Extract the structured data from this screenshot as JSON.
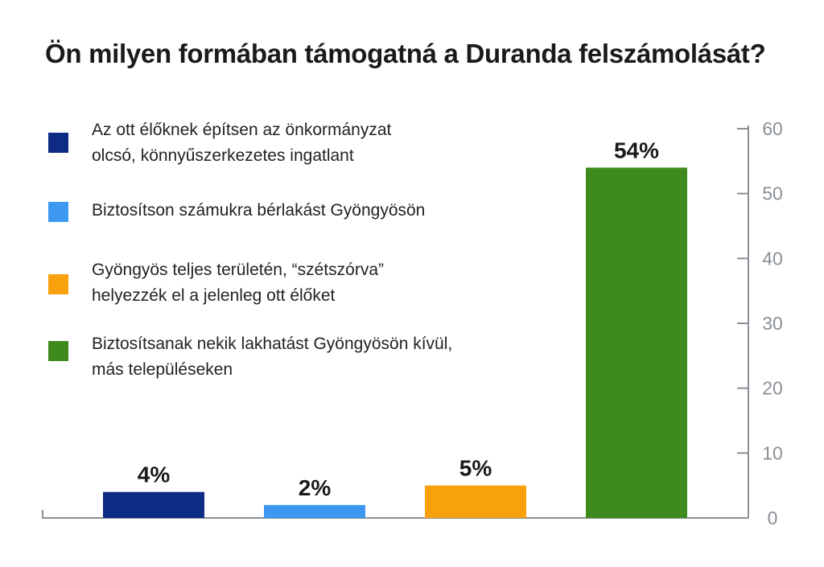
{
  "chart_data": {
    "type": "bar",
    "title": "Ön milyen formában támogatná a Duranda felszámolását?",
    "categories": [
      "Az ott élőknek építsen az önkormányzat olcsó, könnyűszerkezetes ingatlant",
      "Biztosítson számukra bérlakást Gyöngyösön",
      "Gyöngyös teljes területén, “szétszórva” helyezzék el a jelenleg ott élőket",
      "Biztosítsanak nekik lakhatást Gyöngyösön kívül, más településeken"
    ],
    "values": [
      4,
      2,
      5,
      54
    ],
    "value_labels": [
      "4%",
      "2%",
      "5%",
      "54%"
    ],
    "colors": [
      "#0d2a85",
      "#3d99f0",
      "#f8a10c",
      "#3f8a1c"
    ],
    "legend": {
      "placement": "top-left",
      "items": [
        [
          "Az ott élőknek építsen az önkormányzat",
          "olcsó, könnyűszerkezetes ingatlant"
        ],
        [
          "Biztosítson számukra bérlakást Gyöngyösön"
        ],
        [
          "Gyöngyös teljes területén, “szétszórva”",
          "helyezzék el a jelenleg ott élőket"
        ],
        [
          "Biztosítsanak nekik lakhatást Gyöngyösön kívül,",
          "más településeken"
        ]
      ]
    },
    "y_axis": {
      "position": "right",
      "ylim": [
        0,
        60
      ],
      "ticks": [
        0,
        10,
        20,
        30,
        40,
        50,
        60
      ],
      "tick_labels": [
        "0",
        "10",
        "20",
        "30",
        "40",
        "50",
        "60"
      ]
    },
    "xlabel": "",
    "ylabel": "",
    "grid": false,
    "axis_color": "#8a9096"
  }
}
